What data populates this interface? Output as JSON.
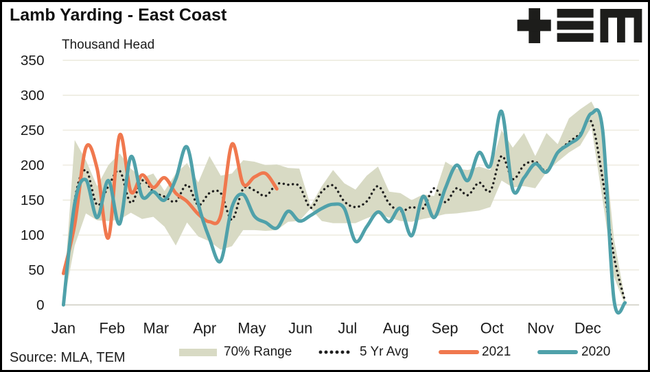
{
  "header": {
    "title": "Lamb Yarding - East Coast",
    "subtitle": "Thousand Head",
    "logo_name": "TEM"
  },
  "footer": {
    "source": "Source: MLA, TEM"
  },
  "legend": [
    {
      "label": "70% Range",
      "swatch": "band",
      "color": "#D8DAC4"
    },
    {
      "label": "5 Yr Avg",
      "swatch": "dotted",
      "color": "#1F1F1F"
    },
    {
      "label": "2021",
      "swatch": "line",
      "color": "#F0784E"
    },
    {
      "label": "2020",
      "swatch": "line",
      "color": "#4FA1AA"
    }
  ],
  "chart_data": {
    "type": "line",
    "title": "Lamb Yarding - East Coast",
    "ylabel": "Thousand Head",
    "xlabel": "",
    "ylim": [
      0,
      350
    ],
    "yticks": [
      0,
      50,
      100,
      150,
      200,
      250,
      300,
      350
    ],
    "grid": "horizontal",
    "legend_position": "bottom",
    "x_unit": "week-of-year",
    "x": [
      1,
      2,
      3,
      4,
      5,
      6,
      7,
      8,
      9,
      10,
      11,
      12,
      13,
      14,
      15,
      16,
      17,
      18,
      19,
      20,
      21,
      22,
      23,
      24,
      25,
      26,
      27,
      28,
      29,
      30,
      31,
      32,
      33,
      34,
      35,
      36,
      37,
      38,
      39,
      40,
      41,
      42,
      43,
      44,
      45,
      46,
      47,
      48,
      49,
      50,
      51,
      52
    ],
    "month_labels": [
      "Jan",
      "Feb",
      "Mar",
      "Apr",
      "May",
      "Jun",
      "Jul",
      "Aug",
      "Sep",
      "Oct",
      "Nov",
      "Dec"
    ],
    "series": [
      {
        "name": "70% Range",
        "type": "band",
        "color": "#D8DAC4",
        "upper": [
          10,
          236,
          207,
          170,
          200,
          217,
          195,
          182,
          188,
          163,
          188,
          203,
          175,
          213,
          185,
          188,
          207,
          205,
          200,
          201,
          196,
          195,
          142,
          170,
          193,
          174,
          165,
          185,
          198,
          162,
          160,
          150,
          158,
          156,
          205,
          195,
          193,
          198,
          193,
          250,
          225,
          246,
          213,
          246,
          230,
          267,
          280,
          291,
          260,
          95,
          8,
          null
        ],
        "lower": [
          0,
          85,
          131,
          121,
          120,
          122,
          132,
          123,
          126,
          112,
          85,
          118,
          98,
          91,
          79,
          84,
          107,
          107,
          106,
          107,
          119,
          120,
          138,
          120,
          117,
          117,
          117,
          124,
          130,
          125,
          120,
          119,
          123,
          126,
          130,
          131,
          133,
          135,
          140,
          178,
          168,
          170,
          167,
          190,
          205,
          218,
          228,
          255,
          150,
          40,
          0,
          null
        ]
      },
      {
        "name": "5 Yr Avg",
        "type": "dotted-line",
        "color": "#1F1F1F",
        "values": [
          5,
          150,
          193,
          143,
          170,
          192,
          146,
          178,
          162,
          155,
          148,
          172,
          143,
          160,
          160,
          122,
          166,
          164,
          156,
          173,
          172,
          170,
          139,
          162,
          171,
          148,
          140,
          148,
          170,
          145,
          134,
          140,
          138,
          167,
          147,
          167,
          157,
          175,
          163,
          213,
          180,
          200,
          205,
          192,
          218,
          233,
          245,
          262,
          180,
          70,
          5,
          null
        ]
      },
      {
        "name": "2021",
        "type": "line",
        "color": "#F0784E",
        "values": [
          45,
          115,
          225,
          195,
          96,
          243,
          162,
          186,
          168,
          182,
          160,
          148,
          130,
          119,
          128,
          230,
          173,
          183,
          188,
          166,
          null,
          null,
          null,
          null,
          null,
          null,
          null,
          null,
          null,
          null,
          null,
          null,
          null,
          null,
          null,
          null,
          null,
          null,
          null,
          null,
          null,
          null,
          null,
          null,
          null,
          null,
          null,
          null,
          null,
          null,
          null,
          null
        ]
      },
      {
        "name": "2020",
        "type": "line",
        "color": "#4FA1AA",
        "values": [
          0,
          145,
          179,
          125,
          178,
          116,
          212,
          155,
          162,
          150,
          180,
          226,
          145,
          95,
          63,
          140,
          158,
          127,
          118,
          110,
          134,
          120,
          128,
          138,
          144,
          138,
          91,
          112,
          133,
          119,
          138,
          99,
          155,
          125,
          167,
          200,
          178,
          218,
          199,
          277,
          165,
          182,
          202,
          190,
          218,
          230,
          242,
          274,
          250,
          8,
          3,
          null
        ]
      }
    ]
  }
}
